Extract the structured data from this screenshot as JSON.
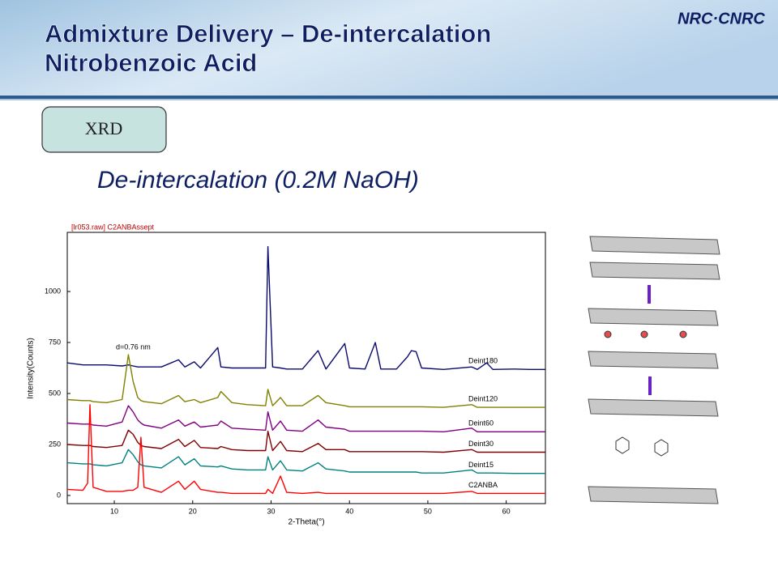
{
  "slide": {
    "title": [
      "Admixture Delivery – De-intercalation",
      "Nitrobenzoic Acid"
    ],
    "logo": "NRC·CNRC",
    "badge": "XRD",
    "subtitle": "De-intercalation (0.2M NaOH)"
  },
  "chart_data": {
    "type": "line",
    "title": "[lr053.raw] C2ANBAssept",
    "annotation": "d=0.76 nm",
    "x_label": "2-Theta(°)",
    "y_label": "Intensity(Counts)",
    "xlim": [
      4,
      65
    ],
    "ylim": [
      -40,
      1290
    ],
    "xticks": [
      10,
      20,
      30,
      40,
      50,
      60
    ],
    "yticks": [
      0,
      250,
      500,
      750,
      1000
    ],
    "x": [
      4,
      6,
      6.6,
      6.9,
      7.3,
      9,
      11,
      11.8,
      12.4,
      13,
      13.4,
      13.8,
      16,
      18.2,
      19,
      20.2,
      21,
      23.2,
      23.6,
      25,
      27,
      29.3,
      29.6,
      30.2,
      31.2,
      32,
      34,
      36,
      37,
      39.4,
      40,
      42,
      43.3,
      44,
      46,
      47.4,
      47.9,
      48.5,
      49.2,
      52,
      55.6,
      56.3,
      57.5,
      58.3,
      61,
      63,
      65
    ],
    "series": [
      {
        "name": "Deint180",
        "color": "#0a0a6e",
        "values": [
          650,
          640,
          640,
          640,
          640,
          640,
          635,
          640,
          635,
          630,
          630,
          630,
          630,
          665,
          630,
          655,
          625,
          725,
          630,
          625,
          625,
          625,
          1220,
          630,
          625,
          620,
          620,
          710,
          620,
          745,
          625,
          620,
          750,
          620,
          620,
          680,
          710,
          705,
          625,
          618,
          630,
          618,
          650,
          618,
          620,
          618,
          618
        ]
      },
      {
        "name": "Deint120",
        "color": "#808000",
        "values": [
          470,
          465,
          465,
          465,
          460,
          455,
          470,
          690,
          560,
          480,
          465,
          460,
          450,
          490,
          460,
          470,
          455,
          480,
          510,
          455,
          445,
          440,
          520,
          440,
          480,
          440,
          440,
          490,
          455,
          440,
          435,
          435,
          435,
          435,
          435,
          435,
          435,
          435,
          435,
          432,
          445,
          432,
          432,
          432,
          432,
          432,
          432
        ]
      },
      {
        "name": "Deint60",
        "color": "#800080",
        "values": [
          355,
          350,
          350,
          350,
          345,
          340,
          360,
          440,
          410,
          370,
          355,
          345,
          330,
          370,
          340,
          360,
          335,
          345,
          365,
          330,
          325,
          320,
          410,
          320,
          365,
          320,
          315,
          370,
          335,
          325,
          315,
          315,
          315,
          315,
          315,
          315,
          315,
          315,
          315,
          312,
          330,
          312,
          312,
          312,
          312,
          312,
          312
        ]
      },
      {
        "name": "Deint30",
        "color": "#800000",
        "values": [
          250,
          245,
          245,
          245,
          240,
          235,
          245,
          320,
          300,
          260,
          245,
          240,
          230,
          275,
          240,
          270,
          235,
          230,
          240,
          225,
          220,
          220,
          315,
          220,
          265,
          220,
          215,
          255,
          225,
          225,
          215,
          215,
          215,
          215,
          215,
          215,
          215,
          215,
          215,
          212,
          225,
          212,
          212,
          212,
          212,
          212,
          212
        ]
      },
      {
        "name": "Deint15",
        "color": "#008080",
        "values": [
          160,
          155,
          155,
          155,
          150,
          145,
          160,
          225,
          200,
          165,
          150,
          145,
          135,
          190,
          150,
          180,
          145,
          140,
          145,
          130,
          125,
          125,
          190,
          125,
          170,
          125,
          120,
          160,
          130,
          120,
          115,
          115,
          115,
          115,
          115,
          115,
          115,
          115,
          110,
          110,
          125,
          110,
          110,
          110,
          108,
          108,
          108
        ]
      },
      {
        "name": "C2ANBA",
        "color": "#ff0000",
        "values": [
          30,
          25,
          60,
          445,
          40,
          20,
          20,
          25,
          25,
          40,
          285,
          40,
          15,
          70,
          30,
          70,
          30,
          15,
          15,
          10,
          10,
          10,
          30,
          10,
          95,
          15,
          10,
          15,
          10,
          10,
          10,
          10,
          10,
          10,
          10,
          10,
          10,
          10,
          10,
          10,
          20,
          10,
          10,
          10,
          10,
          10,
          10
        ]
      }
    ]
  }
}
